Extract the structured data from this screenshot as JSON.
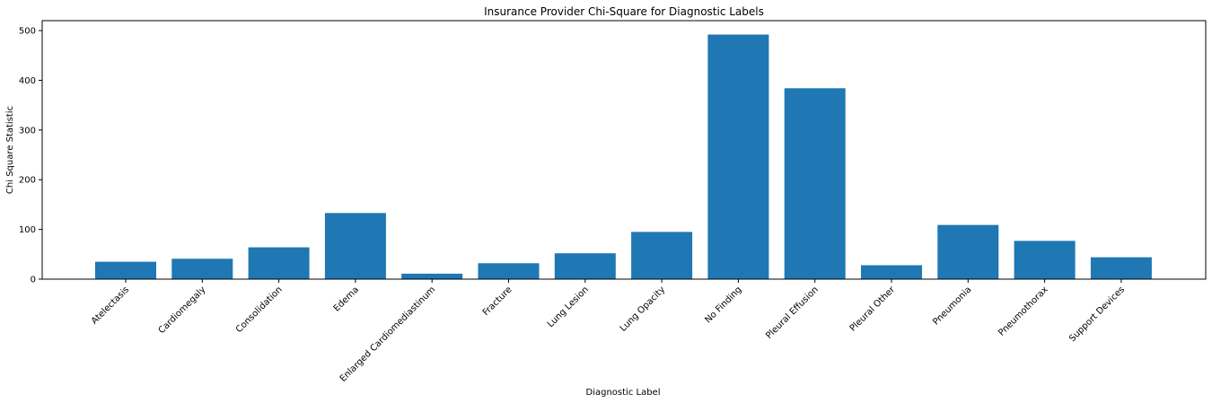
{
  "chart_data": {
    "type": "bar",
    "title": "Insurance Provider Chi-Square for Diagnostic Labels",
    "xlabel": "Diagnostic Label",
    "ylabel": "Chi Square Statistic",
    "ylim": [
      0,
      520
    ],
    "yticks": [
      0,
      100,
      200,
      300,
      400,
      500
    ],
    "bar_color": "#1f77b4",
    "grid": false,
    "categories": [
      "Atelectasis",
      "Cardiomegaly",
      "Consolidation",
      "Edema",
      "Enlarged Cardiomediastinum",
      "Fracture",
      "Lung Lesion",
      "Lung Opacity",
      "No Finding",
      "Pleural Effusion",
      "Pleural Other",
      "Pneumonia",
      "Pneumothorax",
      "Support Devices"
    ],
    "values": [
      35,
      41,
      64,
      133,
      11,
      32,
      52,
      95,
      492,
      384,
      28,
      109,
      77,
      44
    ]
  }
}
